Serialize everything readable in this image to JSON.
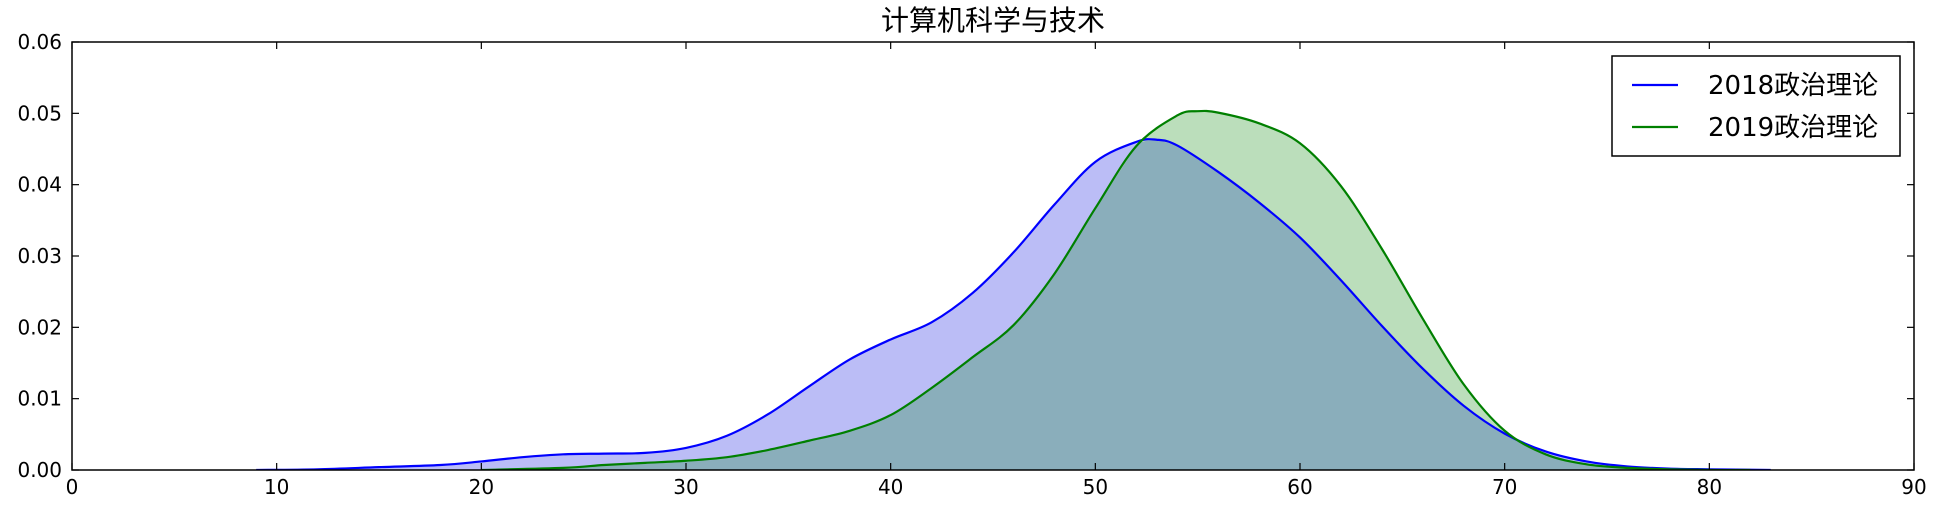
{
  "chart_data": {
    "type": "area",
    "title": "计算机科学与技术",
    "xlabel": "",
    "ylabel": "",
    "xlim": [
      0,
      90
    ],
    "ylim": [
      0,
      0.06
    ],
    "x_ticks": [
      0,
      10,
      20,
      30,
      40,
      50,
      60,
      70,
      80,
      90
    ],
    "x_tick_labels": [
      "0",
      "10",
      "20",
      "30",
      "40",
      "50",
      "60",
      "70",
      "80",
      "90"
    ],
    "y_ticks": [
      0,
      0.01,
      0.02,
      0.03,
      0.04,
      0.05,
      0.06
    ],
    "y_tick_labels": [
      "0.00",
      "0.01",
      "0.02",
      "0.03",
      "0.04",
      "0.05",
      "0.06"
    ],
    "grid": false,
    "legend_position": "top-right",
    "series": [
      {
        "name": "2018政治理论",
        "color": "#0000ff",
        "fill_color": "#bbbdf6",
        "x": [
          9,
          12,
          15,
          18,
          20,
          22,
          24,
          26,
          28,
          30,
          32,
          34,
          36,
          38,
          40,
          42,
          44,
          46,
          48,
          50,
          52,
          53,
          54,
          56,
          58,
          60,
          62,
          64,
          66,
          68,
          70,
          72,
          74,
          76,
          78,
          80,
          83
        ],
        "values": [
          0.0,
          0.0001,
          0.0004,
          0.0007,
          0.0012,
          0.0018,
          0.0022,
          0.0023,
          0.0024,
          0.0031,
          0.0048,
          0.0078,
          0.0117,
          0.0155,
          0.0183,
          0.0207,
          0.0248,
          0.0305,
          0.0372,
          0.0432,
          0.046,
          0.0463,
          0.0455,
          0.0418,
          0.0375,
          0.0326,
          0.0266,
          0.0202,
          0.0142,
          0.009,
          0.0051,
          0.0026,
          0.0012,
          0.0005,
          0.0002,
          0.0001,
          0.0
        ]
      },
      {
        "name": "2019政治理论",
        "color": "#008000",
        "fill_color": "#bbdebb",
        "x": [
          20,
          24,
          26,
          28,
          30,
          32,
          34,
          36,
          38,
          40,
          42,
          44,
          46,
          48,
          50,
          52,
          54,
          55,
          56,
          58,
          60,
          62,
          64,
          66,
          68,
          70,
          72,
          74,
          76,
          78,
          80,
          82
        ],
        "values": [
          0.0,
          0.0003,
          0.0007,
          0.001,
          0.0013,
          0.0018,
          0.0028,
          0.0041,
          0.0055,
          0.0077,
          0.0115,
          0.0158,
          0.0203,
          0.0275,
          0.0367,
          0.0454,
          0.0497,
          0.0503,
          0.0501,
          0.0486,
          0.0458,
          0.0398,
          0.031,
          0.0212,
          0.012,
          0.0055,
          0.0022,
          0.0008,
          0.0003,
          0.0001,
          0.0,
          0.0
        ]
      }
    ],
    "overlap_color": "#8aaebb"
  }
}
